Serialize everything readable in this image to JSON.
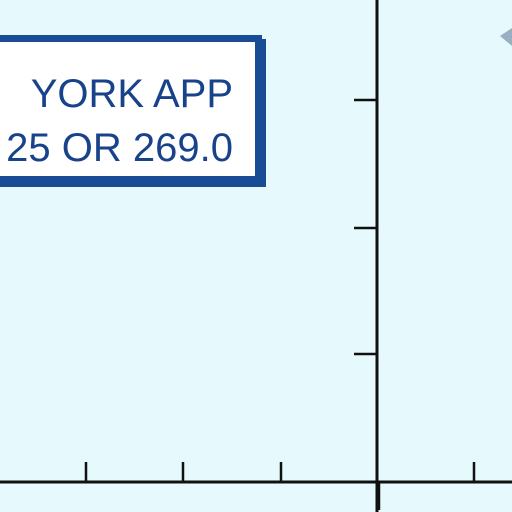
{
  "chart_data": {
    "type": "line",
    "title": "",
    "xlabel": "",
    "ylabel": "",
    "series": [],
    "annotation": {
      "lines": [
        "YORK APP",
        "25 OR 269.0"
      ]
    },
    "grid": false
  },
  "colors": {
    "background": "#e6f9fc",
    "axis": "#111111",
    "label_border": "#184d96",
    "label_text": "#18438a",
    "arrow": "#9ab0c2"
  }
}
